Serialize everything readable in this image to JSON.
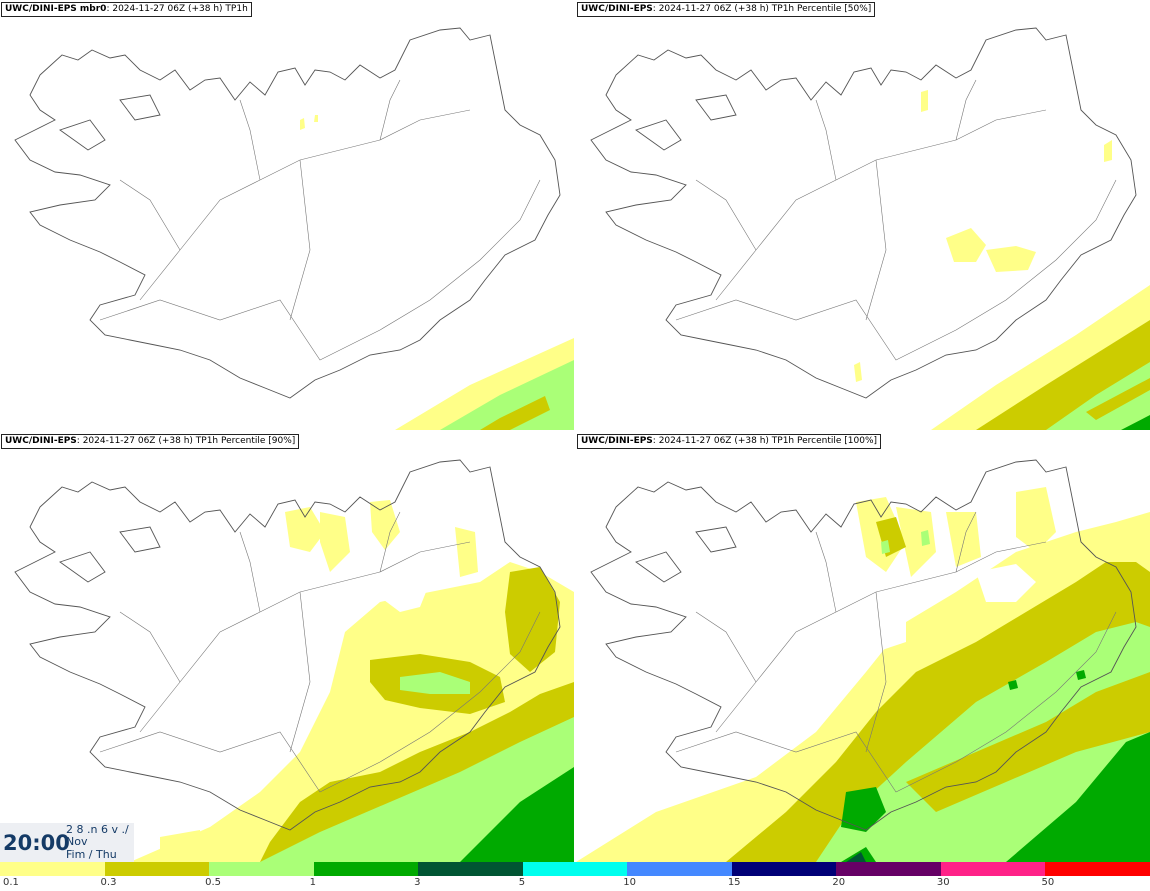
{
  "panels": [
    {
      "source": "UWC/DINI-EPS mbr0",
      "info": ": 2024-11-27 06Z (+38 h) TP1h"
    },
    {
      "source": "UWC/DINI-EPS",
      "info": ": 2024-11-27 06Z (+38 h) TP1h Percentile [50%]"
    },
    {
      "source": "UWC/DINI-EPS",
      "info": ": 2024-11-27 06Z (+38 h) TP1h Percentile [90%]"
    },
    {
      "source": "UWC/DINI-EPS",
      "info": ": 2024-11-27 06Z (+38 h) TP1h Percentile [100%]"
    }
  ],
  "time": {
    "main": "20:00",
    "line1": "2 8 .n 6 v ./",
    "line2": "Nov",
    "line3": "Fim / Thu"
  },
  "legend": {
    "labels": [
      "0.1",
      "0.3",
      "0.5",
      "1",
      "3",
      "5",
      "10",
      "15",
      "20",
      "30",
      "50"
    ],
    "colors": [
      "#ffff88",
      "#cccc00",
      "#aaff77",
      "#00aa00",
      "#005533",
      "#00ffee",
      "#4488ff",
      "#000077",
      "#660066",
      "#ff2288",
      "#ff0000"
    ]
  },
  "colors": {
    "light_yellow": "#ffff88",
    "olive": "#cccc00",
    "light_green": "#aaff77",
    "green": "#00aa00",
    "coast": "#555555"
  }
}
